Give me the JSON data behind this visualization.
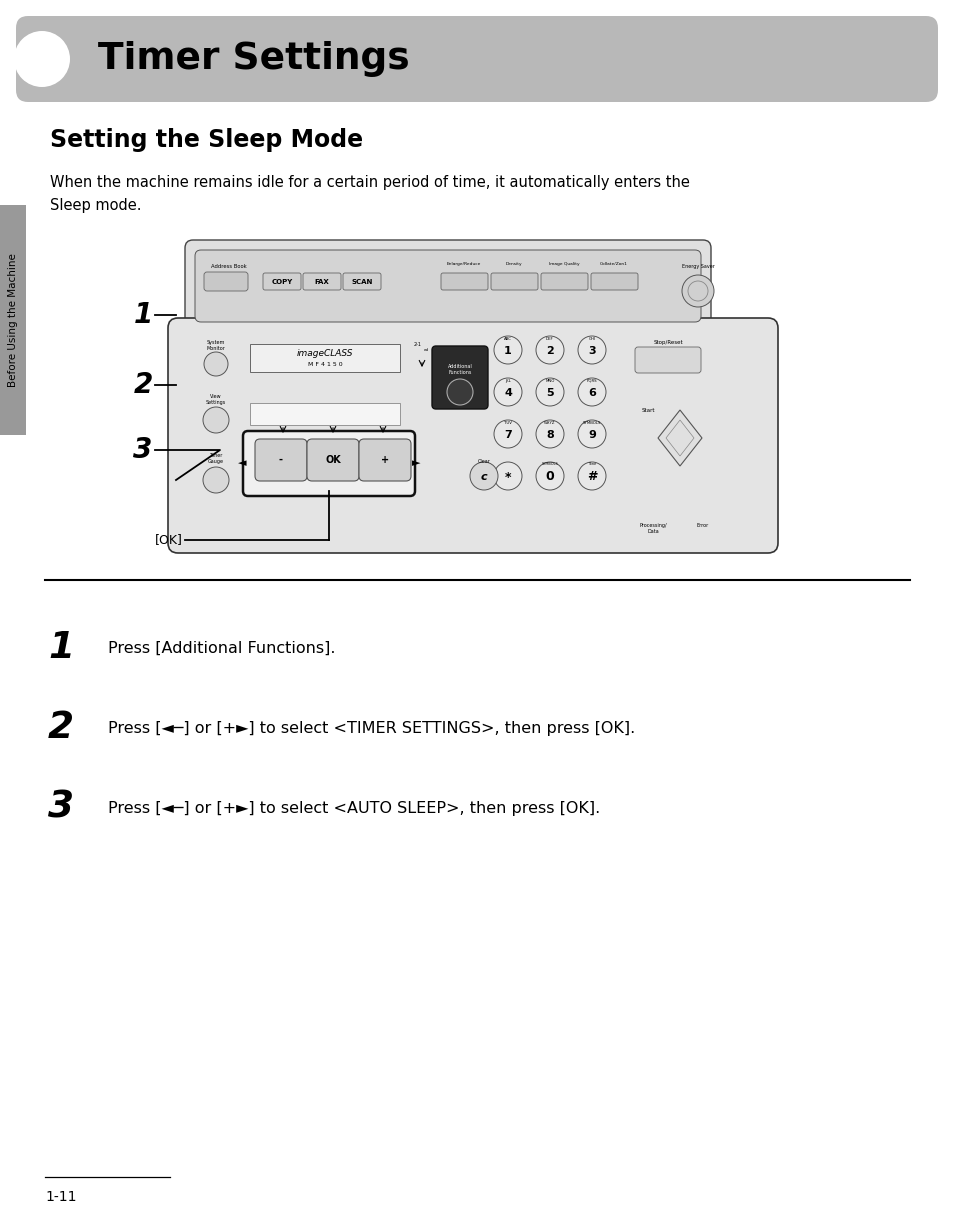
{
  "title": "Timer Settings",
  "section_title": "Setting the Sleep Mode",
  "body_text_line1": "When the machine remains idle for a certain period of time, it automatically enters the",
  "body_text_line2": "Sleep mode.",
  "step1_num": "1",
  "step1_text": "Press [Additional Functions].",
  "step2_num": "2",
  "step2_text": "Press [◄─] or [+►] to select <TIMER SETTINGS>, then press [OK].",
  "step3_num": "3",
  "step3_text": "Press [◄─] or [+►] to select <AUTO SLEEP>, then press [OK].",
  "page_number": "1-11",
  "sidebar_text": "Before Using the Machine",
  "ok_label": "[OK]",
  "bg_color": "#ffffff",
  "header_bg": "#b8b8b8",
  "header_text_color": "#000000",
  "body_text_color": "#000000",
  "separator_color": "#000000",
  "sidebar_bg": "#999999",
  "fig_w": 9.54,
  "fig_h": 12.25,
  "dpi": 100
}
